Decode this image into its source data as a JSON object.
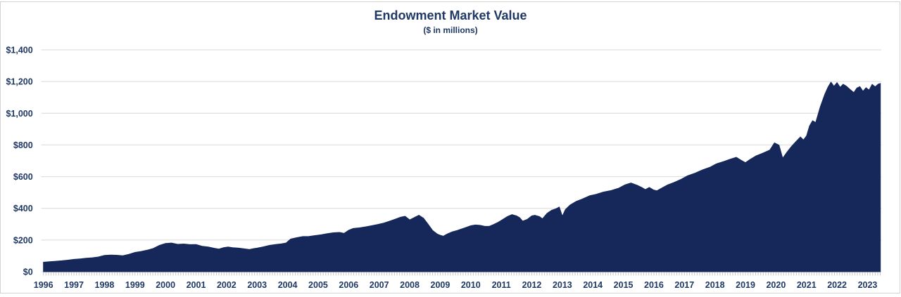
{
  "window": {
    "background": "#FFFFFF",
    "border_color": "#D3D3D3"
  },
  "chart_data": {
    "type": "area",
    "title": "Endowment Market Value",
    "subtitle": "($ in millions)",
    "grid": "horizontal",
    "legend": "none",
    "colors": {
      "area_fill": "#16285A",
      "label_text": "#1F3864",
      "gridline": "#D9D9D9",
      "minor_tick": "#C8C8C8"
    },
    "x_axis": {
      "unit": "year",
      "range": [
        1996,
        2023.45
      ],
      "tick_labels": [
        "1996",
        "1997",
        "1998",
        "1999",
        "2000",
        "2001",
        "2002",
        "2003",
        "2004",
        "2005",
        "2006",
        "2007",
        "2008",
        "2009",
        "2010",
        "2011",
        "2012",
        "2013",
        "2014",
        "2015",
        "2016",
        "2017",
        "2018",
        "2019",
        "2020",
        "2021",
        "2022",
        "2023"
      ],
      "minor_ticks_per_year": 12
    },
    "y_axis": {
      "range": [
        0,
        1400
      ],
      "tick_values": [
        0,
        200,
        400,
        600,
        800,
        1000,
        1200,
        1400
      ],
      "tick_labels": [
        "$0",
        "$200",
        "$400",
        "$600",
        "$800",
        "$1,000",
        "$1,200",
        "$1,400"
      ]
    },
    "series": [
      {
        "name": "Endowment Market Value ($ in millions)",
        "points": [
          [
            1996.0,
            60
          ],
          [
            1996.2,
            63
          ],
          [
            1996.4,
            66
          ],
          [
            1996.6,
            69
          ],
          [
            1996.8,
            73
          ],
          [
            1997.0,
            78
          ],
          [
            1997.2,
            81
          ],
          [
            1997.4,
            85
          ],
          [
            1997.6,
            88
          ],
          [
            1997.8,
            93
          ],
          [
            1998.0,
            103
          ],
          [
            1998.2,
            105
          ],
          [
            1998.4,
            104
          ],
          [
            1998.6,
            101
          ],
          [
            1998.8,
            110
          ],
          [
            1999.0,
            122
          ],
          [
            1999.2,
            128
          ],
          [
            1999.4,
            136
          ],
          [
            1999.6,
            147
          ],
          [
            1999.8,
            166
          ],
          [
            2000.0,
            178
          ],
          [
            2000.2,
            181
          ],
          [
            2000.4,
            173
          ],
          [
            2000.6,
            175
          ],
          [
            2000.8,
            171
          ],
          [
            2001.0,
            172
          ],
          [
            2001.2,
            161
          ],
          [
            2001.4,
            156
          ],
          [
            2001.6,
            148
          ],
          [
            2001.75,
            143
          ],
          [
            2001.9,
            152
          ],
          [
            2002.05,
            156
          ],
          [
            2002.2,
            152
          ],
          [
            2002.4,
            149
          ],
          [
            2002.6,
            144
          ],
          [
            2002.75,
            140
          ],
          [
            2002.9,
            146
          ],
          [
            2003.0,
            149
          ],
          [
            2003.2,
            157
          ],
          [
            2003.4,
            166
          ],
          [
            2003.6,
            172
          ],
          [
            2003.8,
            176
          ],
          [
            2003.95,
            181
          ],
          [
            2004.1,
            206
          ],
          [
            2004.3,
            215
          ],
          [
            2004.5,
            222
          ],
          [
            2004.7,
            223
          ],
          [
            2004.9,
            228
          ],
          [
            2005.1,
            233
          ],
          [
            2005.3,
            240
          ],
          [
            2005.5,
            246
          ],
          [
            2005.7,
            248
          ],
          [
            2005.85,
            242
          ],
          [
            2006.0,
            262
          ],
          [
            2006.15,
            273
          ],
          [
            2006.35,
            277
          ],
          [
            2006.55,
            283
          ],
          [
            2006.75,
            290
          ],
          [
            2006.95,
            298
          ],
          [
            2007.15,
            307
          ],
          [
            2007.35,
            320
          ],
          [
            2007.55,
            333
          ],
          [
            2007.7,
            344
          ],
          [
            2007.85,
            350
          ],
          [
            2008.0,
            327
          ],
          [
            2008.15,
            342
          ],
          [
            2008.3,
            356
          ],
          [
            2008.45,
            338
          ],
          [
            2008.6,
            300
          ],
          [
            2008.75,
            260
          ],
          [
            2008.9,
            238
          ],
          [
            2009.0,
            230
          ],
          [
            2009.1,
            224
          ],
          [
            2009.25,
            240
          ],
          [
            2009.4,
            252
          ],
          [
            2009.55,
            260
          ],
          [
            2009.7,
            270
          ],
          [
            2009.85,
            280
          ],
          [
            2010.0,
            290
          ],
          [
            2010.15,
            295
          ],
          [
            2010.3,
            293
          ],
          [
            2010.45,
            287
          ],
          [
            2010.6,
            286
          ],
          [
            2010.75,
            298
          ],
          [
            2010.9,
            312
          ],
          [
            2011.05,
            330
          ],
          [
            2011.2,
            348
          ],
          [
            2011.35,
            360
          ],
          [
            2011.5,
            352
          ],
          [
            2011.6,
            341
          ],
          [
            2011.7,
            319
          ],
          [
            2011.85,
            330
          ],
          [
            2012.0,
            352
          ],
          [
            2012.1,
            356
          ],
          [
            2012.25,
            348
          ],
          [
            2012.35,
            334
          ],
          [
            2012.5,
            368
          ],
          [
            2012.65,
            388
          ],
          [
            2012.8,
            398
          ],
          [
            2012.9,
            408
          ],
          [
            2013.0,
            350
          ],
          [
            2013.1,
            392
          ],
          [
            2013.25,
            420
          ],
          [
            2013.45,
            443
          ],
          [
            2013.65,
            458
          ],
          [
            2013.9,
            480
          ],
          [
            2014.1,
            488
          ],
          [
            2014.35,
            503
          ],
          [
            2014.6,
            512
          ],
          [
            2014.85,
            527
          ],
          [
            2015.05,
            548
          ],
          [
            2015.25,
            560
          ],
          [
            2015.45,
            546
          ],
          [
            2015.6,
            532
          ],
          [
            2015.72,
            518
          ],
          [
            2015.85,
            532
          ],
          [
            2016.0,
            515
          ],
          [
            2016.1,
            511
          ],
          [
            2016.25,
            527
          ],
          [
            2016.45,
            548
          ],
          [
            2016.65,
            562
          ],
          [
            2016.9,
            584
          ],
          [
            2017.1,
            605
          ],
          [
            2017.35,
            622
          ],
          [
            2017.6,
            643
          ],
          [
            2017.85,
            660
          ],
          [
            2018.05,
            681
          ],
          [
            2018.3,
            696
          ],
          [
            2018.5,
            710
          ],
          [
            2018.7,
            722
          ],
          [
            2018.85,
            704
          ],
          [
            2019.0,
            688
          ],
          [
            2019.15,
            708
          ],
          [
            2019.35,
            731
          ],
          [
            2019.55,
            747
          ],
          [
            2019.8,
            768
          ],
          [
            2019.95,
            813
          ],
          [
            2020.1,
            799
          ],
          [
            2020.22,
            716
          ],
          [
            2020.35,
            752
          ],
          [
            2020.5,
            789
          ],
          [
            2020.65,
            820
          ],
          [
            2020.8,
            850
          ],
          [
            2020.9,
            831
          ],
          [
            2021.0,
            857
          ],
          [
            2021.1,
            920
          ],
          [
            2021.2,
            953
          ],
          [
            2021.3,
            941
          ],
          [
            2021.45,
            1040
          ],
          [
            2021.6,
            1120
          ],
          [
            2021.7,
            1163
          ],
          [
            2021.8,
            1196
          ],
          [
            2021.9,
            1170
          ],
          [
            2022.0,
            1193
          ],
          [
            2022.1,
            1164
          ],
          [
            2022.2,
            1183
          ],
          [
            2022.3,
            1172
          ],
          [
            2022.45,
            1146
          ],
          [
            2022.55,
            1130
          ],
          [
            2022.65,
            1159
          ],
          [
            2022.75,
            1168
          ],
          [
            2022.85,
            1138
          ],
          [
            2022.95,
            1161
          ],
          [
            2023.05,
            1146
          ],
          [
            2023.15,
            1182
          ],
          [
            2023.25,
            1167
          ],
          [
            2023.35,
            1184
          ],
          [
            2023.42,
            1188
          ]
        ]
      }
    ]
  }
}
